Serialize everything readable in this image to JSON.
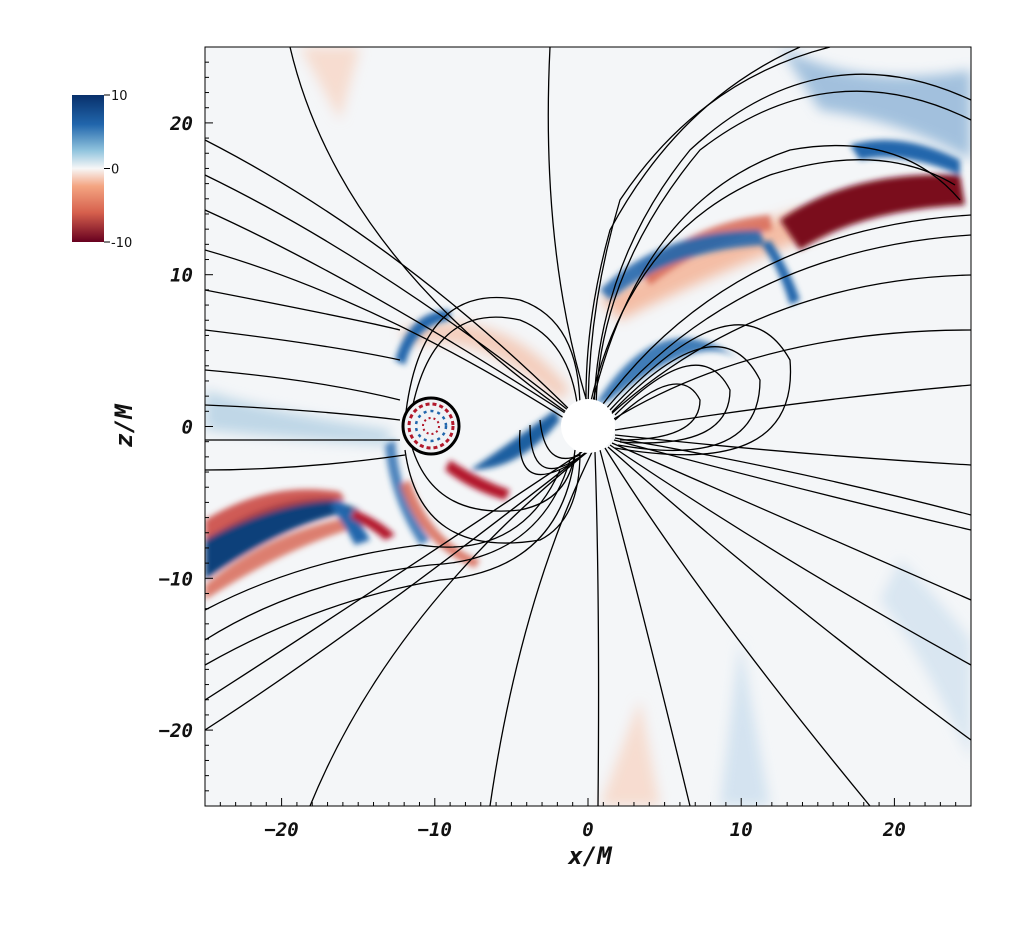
{
  "chart_data": {
    "type": "heatmap",
    "title": "",
    "xlabel": "x/M",
    "ylabel": "z/M",
    "xlim": [
      -25,
      25
    ],
    "ylim": [
      -25,
      25
    ],
    "x_ticks": [
      -20,
      -10,
      0,
      10,
      20
    ],
    "y_ticks": [
      20,
      10,
      0,
      -10,
      -20
    ],
    "colorbar": {
      "min": -10,
      "max": 10,
      "ticks": [
        {
          "value": 10,
          "label": "10"
        },
        {
          "value": 0,
          "label": "0"
        },
        {
          "value": -10,
          "label": "-10"
        }
      ],
      "colors": {
        "high": "#08306b",
        "mid": "#f7f7f7",
        "low": "#67001f"
      }
    },
    "field_lines": true,
    "objects": [
      {
        "name": "black-hole",
        "x": 0,
        "z": 0,
        "radius": 1.7,
        "fill": "#ffffff"
      },
      {
        "name": "neutron-star",
        "x": -10.5,
        "z": 0,
        "radius": 2.0
      }
    ],
    "grid": false
  }
}
